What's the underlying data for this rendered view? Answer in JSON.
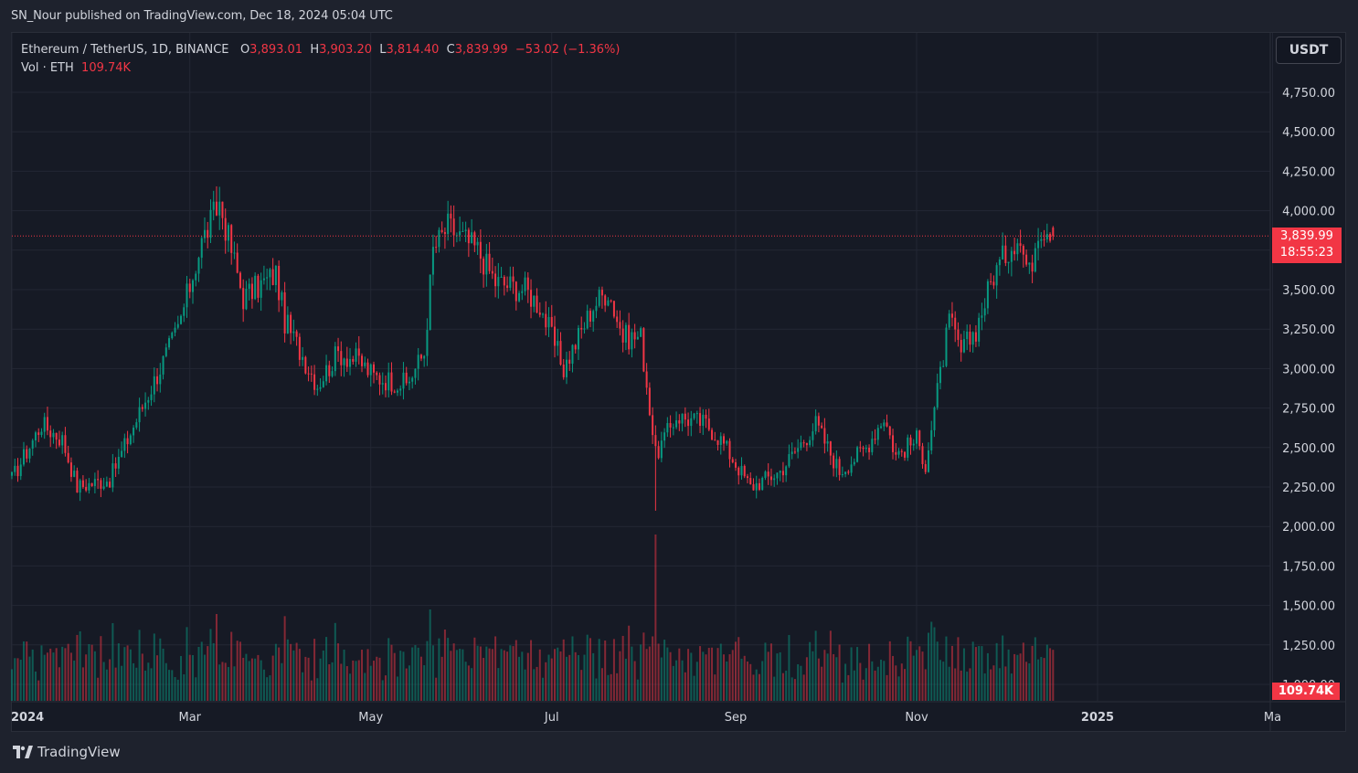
{
  "publisher": "SN_Nour published on TradingView.com, Dec 18, 2024 05:04 UTC",
  "legend": {
    "symbol": "Ethereum / TetherUS, 1D, BINANCE",
    "o_label": "O",
    "o_value": "3,893.01",
    "h_label": "H",
    "h_value": "3,903.20",
    "l_label": "L",
    "l_value": "3,814.40",
    "c_label": "C",
    "c_value": "3,839.99",
    "change": "−53.02 (−1.36%)",
    "vol_label": "Vol · ETH",
    "vol_value": "109.74K"
  },
  "currency_button": "USDT",
  "price_tag": {
    "price": "3,839.99",
    "countdown": "18:55:23"
  },
  "volume_tag": "109.74K",
  "branding": "TradingView",
  "colors": {
    "up": "#089981",
    "down": "#f23645",
    "background": "#161a25",
    "grid": "#232734"
  },
  "chart_data": {
    "type": "candlestick",
    "y_ticks": [
      "4,750.00",
      "4,500.00",
      "4,250.00",
      "4,000.00",
      "3,750.00",
      "3,500.00",
      "3,250.00",
      "3,000.00",
      "2,750.00",
      "2,500.00",
      "2,250.00",
      "2,000.00",
      "1,750.00",
      "1,500.00",
      "1,250.00",
      "1,000.00"
    ],
    "x_ticks": [
      "2024",
      "Mar",
      "May",
      "Jul",
      "Sep",
      "Nov",
      "2025",
      "Ma"
    ],
    "ylim": [
      1000,
      5000
    ],
    "current_price": 3839.99,
    "waypoints": [
      [
        "2024-01-01",
        2300
      ],
      [
        "2024-01-11",
        2650
      ],
      [
        "2024-01-18",
        2550
      ],
      [
        "2024-01-23",
        2250
      ],
      [
        "2024-02-03",
        2300
      ],
      [
        "2024-02-15",
        2800
      ],
      [
        "2024-02-26",
        3250
      ],
      [
        "2024-03-05",
        3800
      ],
      [
        "2024-03-11",
        4050
      ],
      [
        "2024-03-19",
        3450
      ],
      [
        "2024-03-30",
        3600
      ],
      [
        "2024-04-02",
        3300
      ],
      [
        "2024-04-13",
        2900
      ],
      [
        "2024-04-20",
        3100
      ],
      [
        "2024-04-27",
        3050
      ],
      [
        "2024-05-02",
        2950
      ],
      [
        "2024-05-13",
        2900
      ],
      [
        "2024-05-19",
        3100
      ],
      [
        "2024-05-22",
        3750
      ],
      [
        "2024-05-27",
        3900
      ],
      [
        "2024-06-06",
        3750
      ],
      [
        "2024-06-12",
        3550
      ],
      [
        "2024-06-22",
        3500
      ],
      [
        "2024-06-27",
        3400
      ],
      [
        "2024-07-05",
        3000
      ],
      [
        "2024-07-15",
        3400
      ],
      [
        "2024-07-20",
        3500
      ],
      [
        "2024-07-25",
        3200
      ],
      [
        "2024-07-31",
        3200
      ],
      [
        "2024-08-05",
        2450
      ],
      [
        "2024-08-12",
        2700
      ],
      [
        "2024-08-22",
        2650
      ],
      [
        "2024-08-27",
        2550
      ],
      [
        "2024-09-06",
        2250
      ],
      [
        "2024-09-16",
        2350
      ],
      [
        "2024-09-28",
        2650
      ],
      [
        "2024-10-06",
        2350
      ],
      [
        "2024-10-15",
        2500
      ],
      [
        "2024-10-21",
        2700
      ],
      [
        "2024-10-25",
        2450
      ],
      [
        "2024-11-01",
        2550
      ],
      [
        "2024-11-04",
        2400
      ],
      [
        "2024-11-12",
        3300
      ],
      [
        "2024-11-16",
        3100
      ],
      [
        "2024-11-21",
        3250
      ],
      [
        "2024-11-27",
        3600
      ],
      [
        "2024-12-05",
        3850
      ],
      [
        "2024-12-09",
        3600
      ],
      [
        "2024-12-12",
        3900
      ],
      [
        "2024-12-17",
        3893
      ]
    ],
    "last_candle": {
      "open": 3893.01,
      "high": 3903.2,
      "low": 3814.4,
      "close": 3839.99
    }
  }
}
